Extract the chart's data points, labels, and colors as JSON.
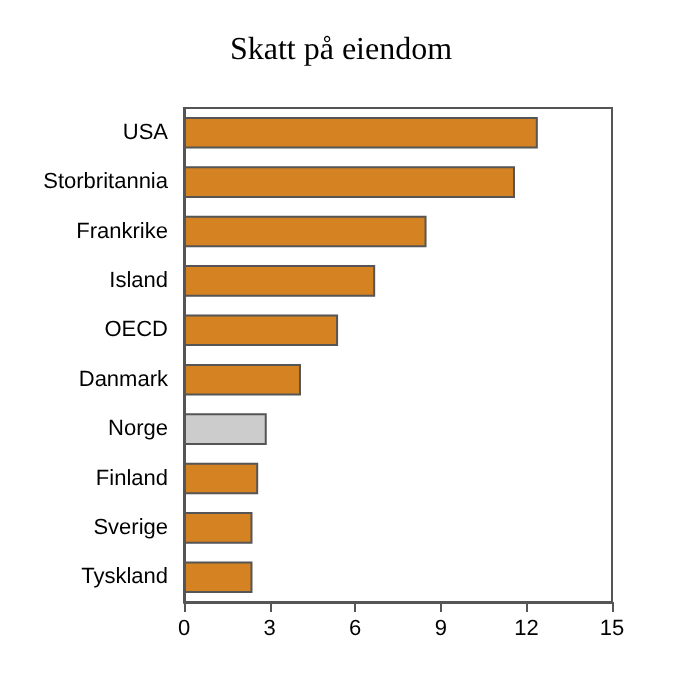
{
  "chart_data": {
    "type": "bar",
    "title": "Skatt på eiendom",
    "orientation": "horizontal",
    "categories": [
      "USA",
      "Storbritannia",
      "Frankrike",
      "Island",
      "OECD",
      "Danmark",
      "Norge",
      "Finland",
      "Sverige",
      "Tyskland"
    ],
    "values": [
      12.4,
      11.6,
      8.5,
      6.7,
      5.4,
      4.1,
      2.9,
      2.6,
      2.4,
      2.4
    ],
    "colors": [
      "#d58223",
      "#d58223",
      "#d58223",
      "#d58223",
      "#d58223",
      "#d58223",
      "#cccccc",
      "#d58223",
      "#d58223",
      "#d58223"
    ],
    "xlim": [
      0,
      15
    ],
    "xticks": [
      0,
      3,
      6,
      9,
      12,
      15
    ]
  }
}
